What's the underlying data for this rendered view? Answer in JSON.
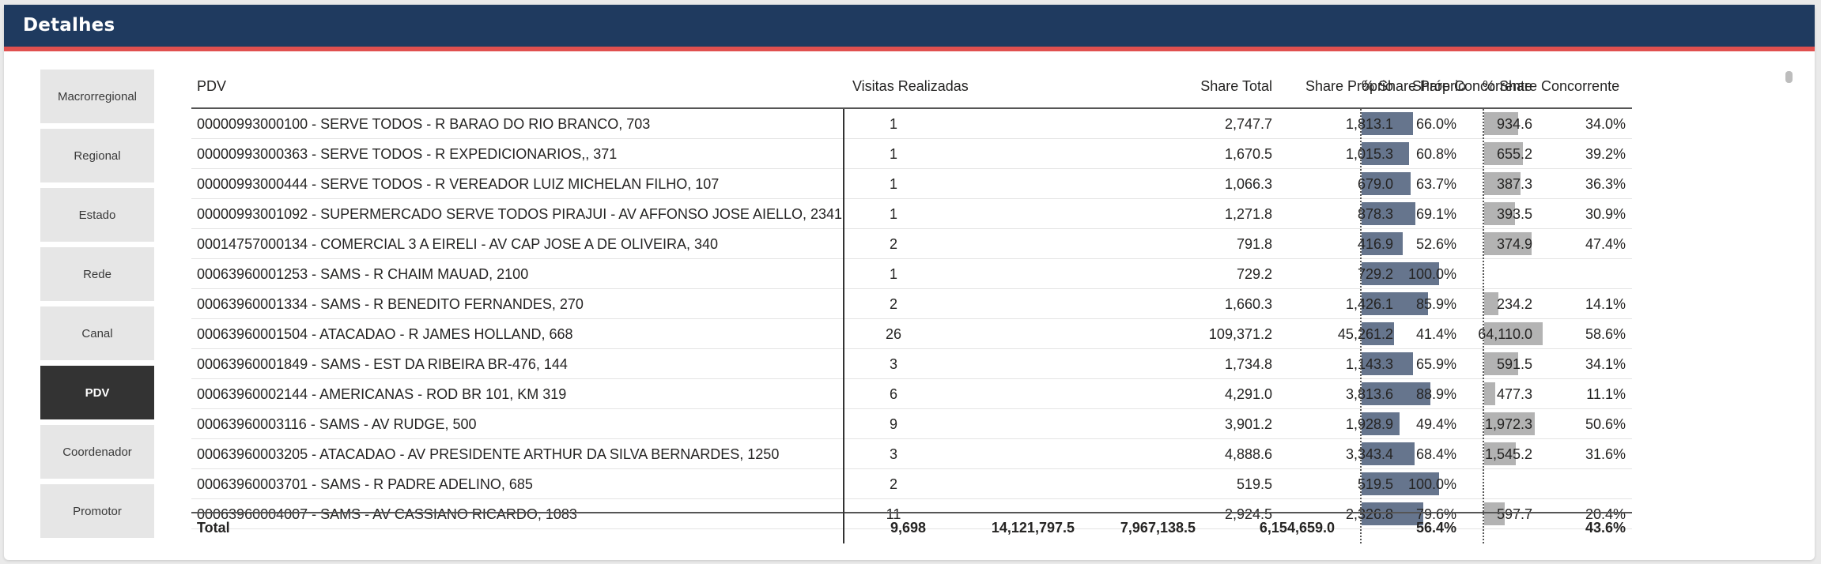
{
  "panel": {
    "title": "Detalhes"
  },
  "nav": {
    "items": [
      {
        "label": "Macrorregional",
        "active": false
      },
      {
        "label": "Regional",
        "active": false
      },
      {
        "label": "Estado",
        "active": false
      },
      {
        "label": "Rede",
        "active": false
      },
      {
        "label": "Canal",
        "active": false
      },
      {
        "label": "PDV",
        "active": true
      },
      {
        "label": "Coordenador",
        "active": false
      },
      {
        "label": "Promotor",
        "active": false
      }
    ]
  },
  "table": {
    "headers": {
      "pdv": "PDV",
      "visitas": "Visitas Realizadas",
      "share_total": "Share Total",
      "share_proprio": "Share Próprio",
      "share_concorrente": "Share Concorrente",
      "pct_proprio": "% Share Próprio",
      "pct_concorrente": "% Share Concorrente"
    },
    "rows": [
      {
        "pdv": "00000993000100 - SERVE TODOS - R BARAO DO RIO BRANCO, 703",
        "visitas": "1",
        "share_total": "2,747.7",
        "share_proprio": "1,813.1",
        "share_concorrente": "934.6",
        "pct_proprio": "66.0%",
        "pct_concorrente": "34.0%",
        "own": 0.66,
        "comp": 0.34
      },
      {
        "pdv": "00000993000363 - SERVE TODOS - R EXPEDICIONARIOS,, 371",
        "visitas": "1",
        "share_total": "1,670.5",
        "share_proprio": "1,015.3",
        "share_concorrente": "655.2",
        "pct_proprio": "60.8%",
        "pct_concorrente": "39.2%",
        "own": 0.608,
        "comp": 0.392
      },
      {
        "pdv": "00000993000444 - SERVE TODOS - R VEREADOR LUIZ MICHELAN FILHO, 107",
        "visitas": "1",
        "share_total": "1,066.3",
        "share_proprio": "679.0",
        "share_concorrente": "387.3",
        "pct_proprio": "63.7%",
        "pct_concorrente": "36.3%",
        "own": 0.637,
        "comp": 0.363
      },
      {
        "pdv": "00000993001092 - SUPERMERCADO SERVE TODOS PIRAJUI - AV AFFONSO JOSE AIELLO, 2341",
        "visitas": "1",
        "share_total": "1,271.8",
        "share_proprio": "878.3",
        "share_concorrente": "393.5",
        "pct_proprio": "69.1%",
        "pct_concorrente": "30.9%",
        "own": 0.691,
        "comp": 0.309
      },
      {
        "pdv": "00014757000134 - COMERCIAL 3 A EIRELI - AV CAP JOSE A DE OLIVEIRA, 340",
        "visitas": "2",
        "share_total": "791.8",
        "share_proprio": "416.9",
        "share_concorrente": "374.9",
        "pct_proprio": "52.6%",
        "pct_concorrente": "47.4%",
        "own": 0.526,
        "comp": 0.474
      },
      {
        "pdv": "00063960001253 - SAMS - R CHAIM MAUAD, 2100",
        "visitas": "1",
        "share_total": "729.2",
        "share_proprio": "729.2",
        "share_concorrente": "",
        "pct_proprio": "100.0%",
        "pct_concorrente": "",
        "own": 1.0,
        "comp": 0
      },
      {
        "pdv": "00063960001334 - SAMS - R BENEDITO FERNANDES, 270",
        "visitas": "2",
        "share_total": "1,660.3",
        "share_proprio": "1,426.1",
        "share_concorrente": "234.2",
        "pct_proprio": "85.9%",
        "pct_concorrente": "14.1%",
        "own": 0.859,
        "comp": 0.141
      },
      {
        "pdv": "00063960001504 - ATACADAO - R JAMES HOLLAND, 668",
        "visitas": "26",
        "share_total": "109,371.2",
        "share_proprio": "45,261.2",
        "share_concorrente": "64,110.0",
        "pct_proprio": "41.4%",
        "pct_concorrente": "58.6%",
        "own": 0.414,
        "comp": 0.586
      },
      {
        "pdv": "00063960001849 - SAMS - EST DA RIBEIRA BR-476, 144",
        "visitas": "3",
        "share_total": "1,734.8",
        "share_proprio": "1,143.3",
        "share_concorrente": "591.5",
        "pct_proprio": "65.9%",
        "pct_concorrente": "34.1%",
        "own": 0.659,
        "comp": 0.341
      },
      {
        "pdv": "00063960002144 - AMERICANAS - ROD BR 101, KM 319",
        "visitas": "6",
        "share_total": "4,291.0",
        "share_proprio": "3,813.6",
        "share_concorrente": "477.3",
        "pct_proprio": "88.9%",
        "pct_concorrente": "11.1%",
        "own": 0.889,
        "comp": 0.111
      },
      {
        "pdv": "00063960003116 - SAMS - AV RUDGE, 500",
        "visitas": "9",
        "share_total": "3,901.2",
        "share_proprio": "1,928.9",
        "share_concorrente": "1,972.3",
        "pct_proprio": "49.4%",
        "pct_concorrente": "50.6%",
        "own": 0.494,
        "comp": 0.506
      },
      {
        "pdv": "00063960003205 - ATACADAO - AV PRESIDENTE ARTHUR DA SILVA BERNARDES, 1250",
        "visitas": "3",
        "share_total": "4,888.6",
        "share_proprio": "3,343.4",
        "share_concorrente": "1,545.2",
        "pct_proprio": "68.4%",
        "pct_concorrente": "31.6%",
        "own": 0.684,
        "comp": 0.316
      },
      {
        "pdv": "00063960003701 - SAMS - R PADRE ADELINO, 685",
        "visitas": "2",
        "share_total": "519.5",
        "share_proprio": "519.5",
        "share_concorrente": "",
        "pct_proprio": "100.0%",
        "pct_concorrente": "",
        "own": 1.0,
        "comp": 0
      },
      {
        "pdv": "00063960004007 - SAMS - AV CASSIANO RICARDO, 1083",
        "visitas": "11",
        "share_total": "2,924.5",
        "share_proprio": "2,326.8",
        "share_concorrente": "597.7",
        "pct_proprio": "79.6%",
        "pct_concorrente": "20.4%",
        "own": 0.796,
        "comp": 0.204
      }
    ],
    "total": {
      "label": "Total",
      "visitas": "9,698",
      "share_total": "14,121,797.5",
      "share_proprio": "7,967,138.5",
      "share_concorrente": "6,154,659.0",
      "pct_proprio": "56.4%",
      "pct_concorrente": "43.6%"
    },
    "colors": {
      "own_bar": "#66758d",
      "comp_bar": "#b3b3b3"
    }
  }
}
